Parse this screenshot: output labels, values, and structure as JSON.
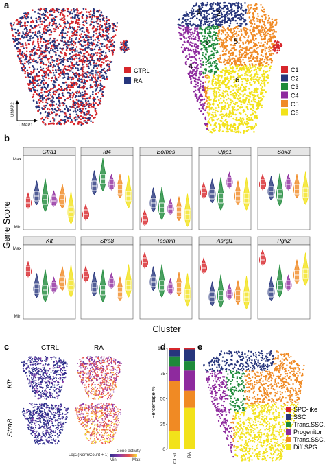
{
  "panels": {
    "a": "a",
    "b": "b",
    "c": "c",
    "d": "d",
    "e": "e"
  },
  "panel_a": {
    "umap_y": "UMAP2",
    "umap_x": "UMAP1",
    "legend_conditions": [
      {
        "label": "CTRL",
        "color": "#d7262b"
      },
      {
        "label": "RA",
        "color": "#26357c"
      }
    ],
    "cluster_labels": [
      "1",
      "2",
      "3",
      "4",
      "5",
      "6"
    ],
    "legend_clusters": [
      {
        "label": "C1",
        "color": "#d7262b"
      },
      {
        "label": "C2",
        "color": "#26357c"
      },
      {
        "label": "C3",
        "color": "#1e8a3a"
      },
      {
        "label": "C4",
        "color": "#8e2a9e"
      },
      {
        "label": "C5",
        "color": "#f08a24"
      },
      {
        "label": "C6",
        "color": "#f2e21a"
      }
    ]
  },
  "chart_data": {
    "type": "violin",
    "ylabel": "Gene Score",
    "xlabel": "Cluster",
    "y_ticks": [
      "Max",
      "Min"
    ],
    "clusters": [
      "C1",
      "C2",
      "C3",
      "C4",
      "C5",
      "C6"
    ],
    "cluster_colors": [
      "#d7262b",
      "#26357c",
      "#1e8a3a",
      "#8e2a9e",
      "#f08a24",
      "#f2e21a"
    ],
    "genes": [
      {
        "name": "Gfra1",
        "medians": [
          0.35,
          0.45,
          0.4,
          0.38,
          0.4,
          0.22
        ]
      },
      {
        "name": "Id4",
        "medians": [
          0.18,
          0.6,
          0.7,
          0.62,
          0.55,
          0.45
        ]
      },
      {
        "name": "Eomes",
        "medians": [
          0.1,
          0.35,
          0.28,
          0.26,
          0.22,
          0.18
        ]
      },
      {
        "name": "Upp1",
        "medians": [
          0.5,
          0.48,
          0.42,
          0.65,
          0.45,
          0.42
        ]
      },
      {
        "name": "Sox3",
        "medians": [
          0.62,
          0.52,
          0.48,
          0.62,
          0.55,
          0.5
        ]
      },
      {
        "name": "Kit",
        "medians": [
          0.65,
          0.4,
          0.38,
          0.42,
          0.5,
          0.45
        ]
      },
      {
        "name": "Stra8",
        "medians": [
          0.58,
          0.42,
          0.38,
          0.48,
          0.35,
          0.45
        ]
      },
      {
        "name": "Tesmin",
        "medians": [
          0.78,
          0.5,
          0.45,
          0.4,
          0.42,
          0.32
        ]
      },
      {
        "name": "Asrgl1",
        "medians": [
          0.7,
          0.28,
          0.3,
          0.32,
          0.3,
          0.28
        ]
      },
      {
        "name": "Pgk2",
        "medians": [
          0.82,
          0.35,
          0.45,
          0.45,
          0.6,
          0.62
        ]
      }
    ]
  },
  "panel_c": {
    "conditions": [
      {
        "label": "CTRL",
        "color": "#e85060"
      },
      {
        "label": "RA",
        "color": "#4a52a8"
      }
    ],
    "genes": [
      "Kit",
      "Stra8"
    ],
    "colorbar_title": "Log2(NormCount + 1)",
    "colorbar_note": "Gene activity",
    "colorbar_ticks": [
      "Min",
      "Max"
    ]
  },
  "panel_d": {
    "ylabel": "Percentage %",
    "y_ticks": [
      "100",
      "75",
      "50",
      "25",
      "0"
    ],
    "categories": [
      "CTRL",
      "RA"
    ],
    "series": [
      {
        "name": "SPC-like",
        "color": "#d7262b",
        "values": [
          2,
          1
        ]
      },
      {
        "name": "SSC",
        "color": "#26357c",
        "values": [
          6,
          12
        ]
      },
      {
        "name": "Trans.SSC.1",
        "color": "#1e8a3a",
        "values": [
          10,
          9
        ]
      },
      {
        "name": "Progenitor",
        "color": "#8e2a9e",
        "values": [
          14,
          20
        ]
      },
      {
        "name": "Trans.SSC.2",
        "color": "#f08a24",
        "values": [
          50,
          17
        ]
      },
      {
        "name": "Diff.SPG",
        "color": "#f2e21a",
        "values": [
          18,
          41
        ]
      }
    ]
  },
  "panel_e": {
    "legend": [
      {
        "label": "SPC-like",
        "color": "#d7262b"
      },
      {
        "label": "SSC",
        "color": "#26357c"
      },
      {
        "label": "Trans.SSC.1",
        "color": "#1e8a3a"
      },
      {
        "label": "Progenitor",
        "color": "#8e2a9e"
      },
      {
        "label": "Trans.SSC.2",
        "color": "#f08a24"
      },
      {
        "label": "Diff.SPG",
        "color": "#f2e21a"
      }
    ]
  }
}
